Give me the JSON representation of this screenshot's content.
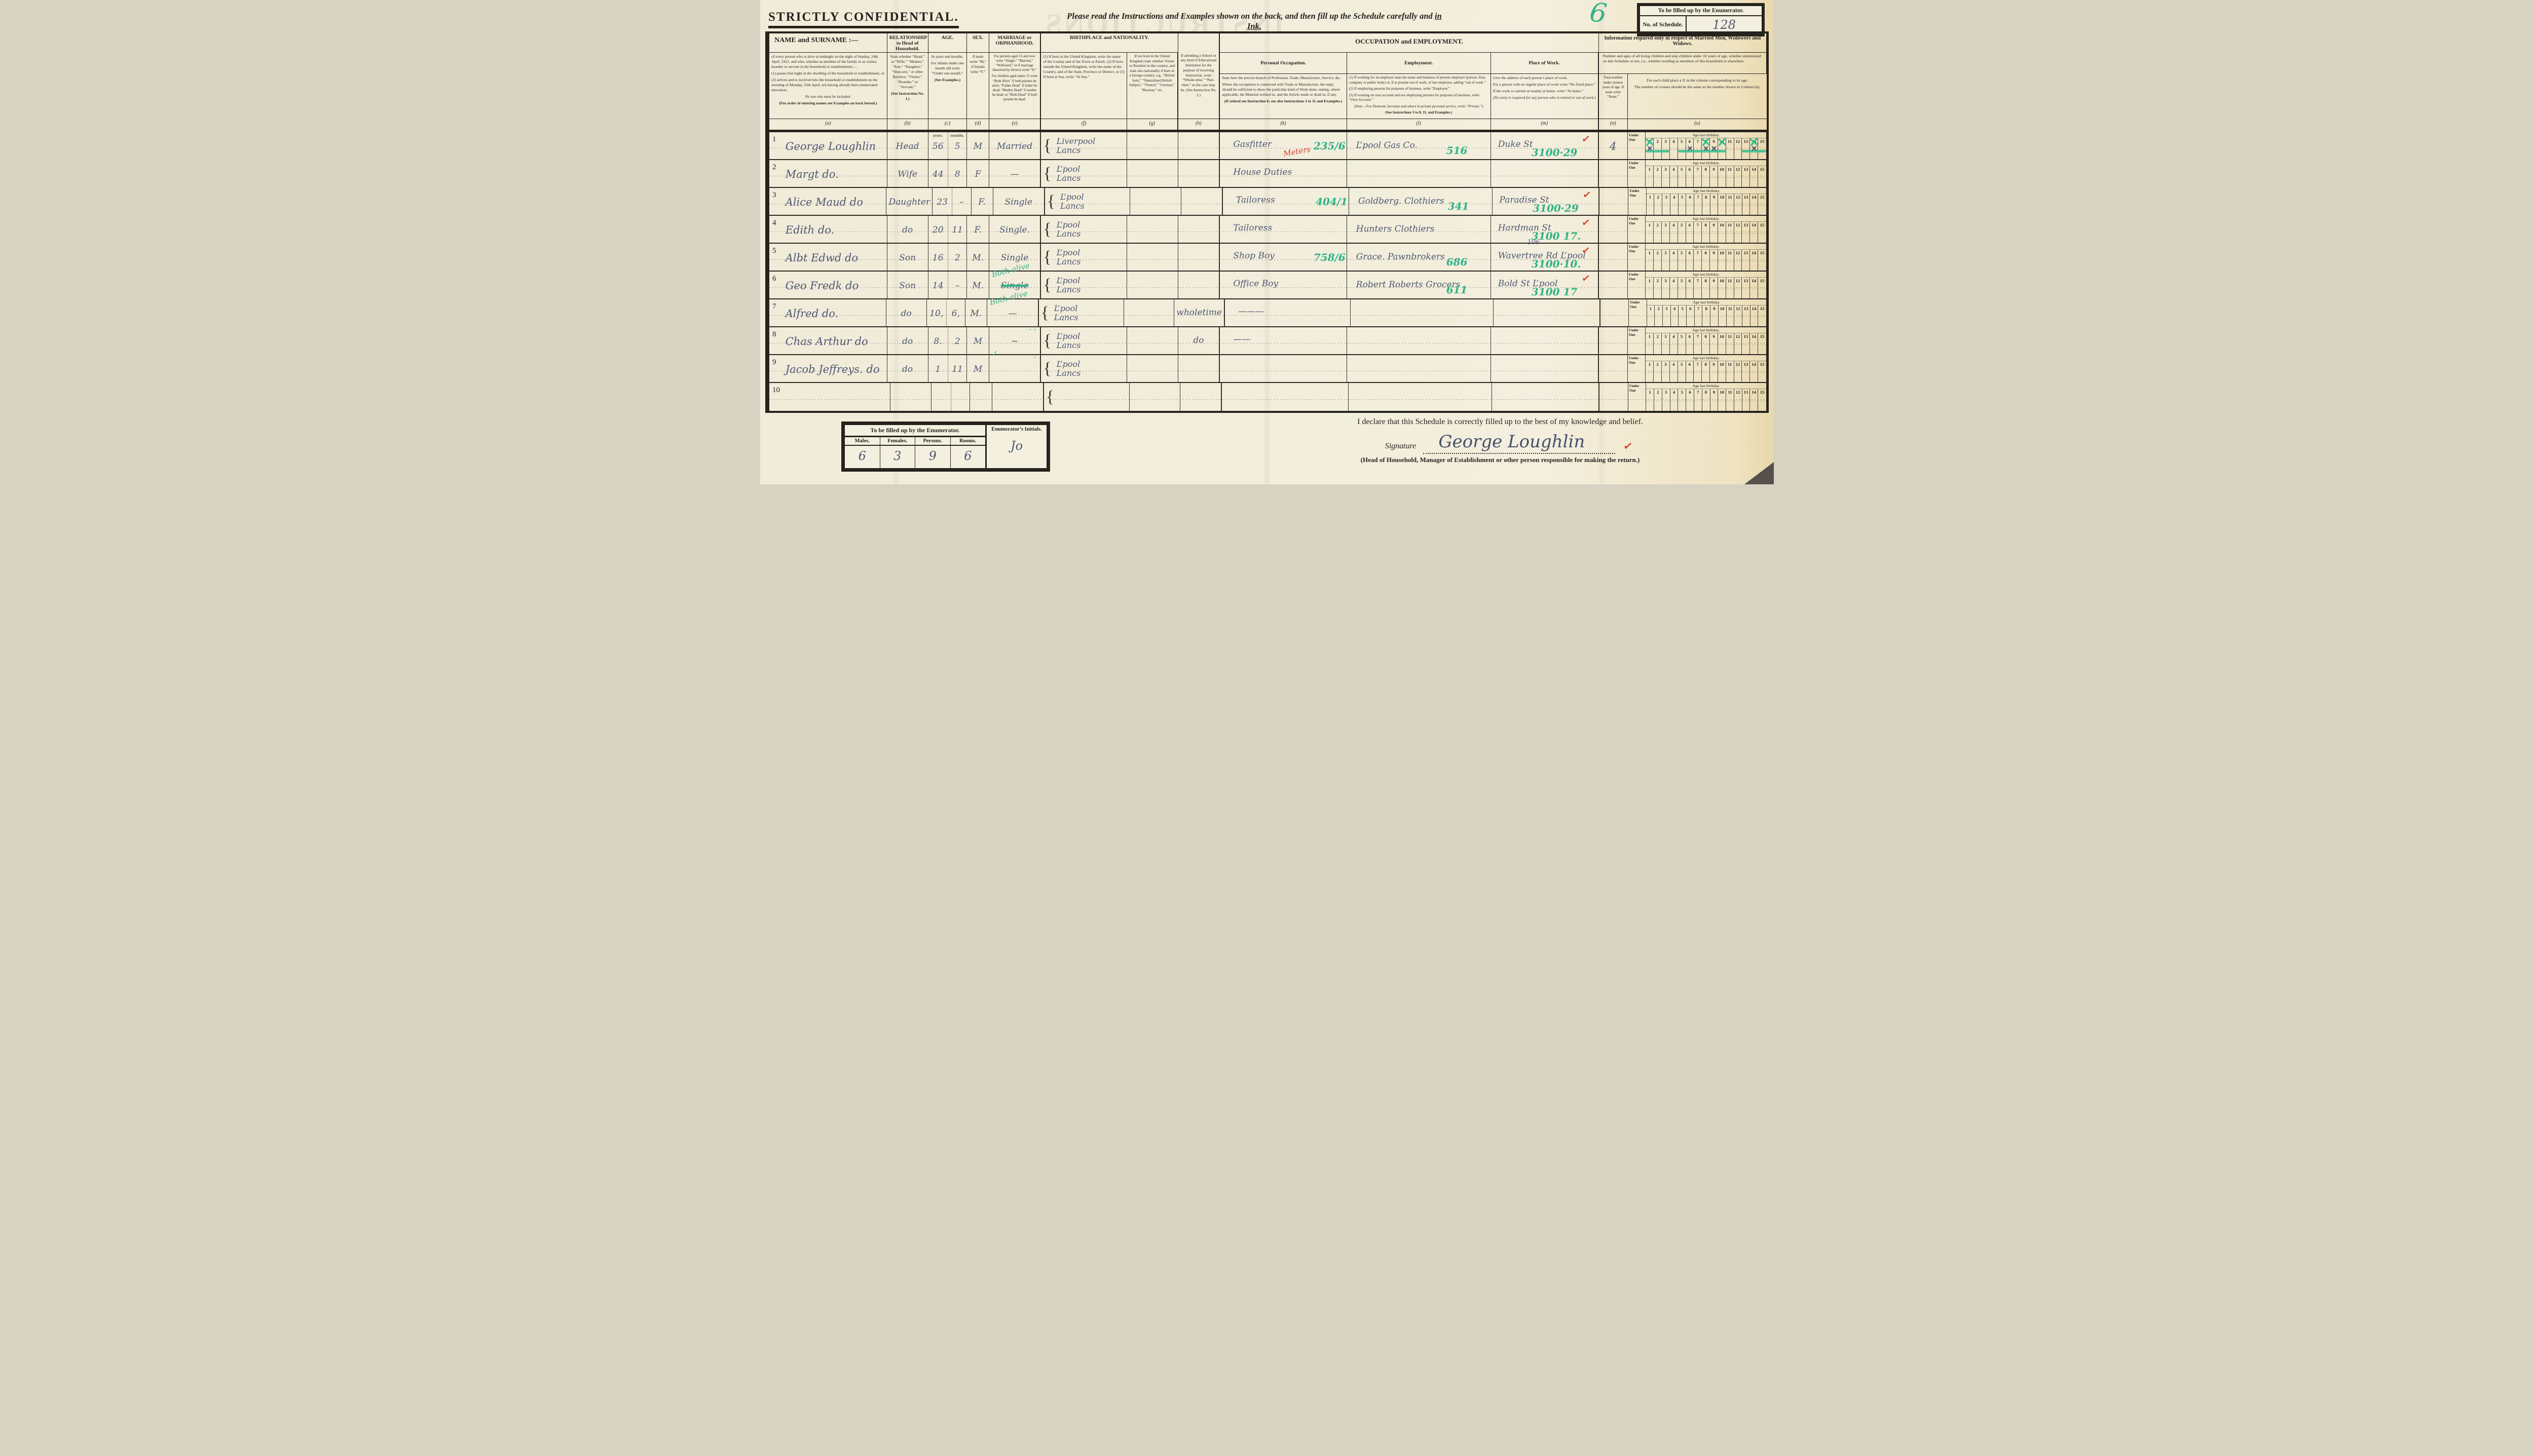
{
  "top": {
    "confidential": "STRICTLY CONFIDENTIAL.",
    "instruction_1": "Please read the Instructions and Examples shown on the back, and then fill up the Schedule carefully and ",
    "instruction_2": "in Ink.",
    "showthrough": "INSTRUCTIONS",
    "schedule_mark": "6",
    "enumerator_box_title": "To be filled up by the Enumerator.",
    "schedule_no_label": "No. of Schedule.",
    "schedule_no_value": "128"
  },
  "header": {
    "name_title": "NAME and SURNAME :—",
    "name_p1": "of every person who is alive at midnight on the night of Sunday, 24th April, 1921, and who, whether as member of the family or as visitor, boarder or servant in the household or establishment:—",
    "name_p2": "(1) passes that night in the dwelling of the household or establishment, or",
    "name_p3": "(2) arrives and is received into the household or establishment on the morning of Monday, 25th April, not having already been enumerated elsewhere.",
    "name_p4": "No one else must be included.",
    "name_p5": "(For order of entering names see Examples on back hereof.)",
    "rel_title": "RELATIONSHIP to Head of Household.",
    "rel_p1": "State whether “Head,” or “Wife,” “Mother,” “Son,” “Daughter,” “Step-son,” or other Relative, “Visitor,” “Boarder,” or “Servant.”",
    "rel_p2": "(See Instruction No. 1.)",
    "age_title": "AGE.",
    "age_p1": "In years and months.",
    "age_p2": "For infants under one month old write “Under one month.”",
    "age_p3": "(See Examples.)",
    "age_sub_years": "years.",
    "age_sub_months": "months.",
    "sex_title": "SEX.",
    "sex_p1": "If male write “M,” if female write “F.”",
    "marr_title": "MARRIAGE or ORPHANHOOD.",
    "marr_p1": "For persons aged 15 and over write “Single,” “Married,” “Widowed,” or if marriage dissolved by divorce write “D.”",
    "marr_p2": "For children aged under 15 write “Both Alive” if both parents be alive; “Father Dead” if father be dead; “Mother Dead” if mother be dead; or “Both Dead” if both parents be dead.",
    "birth_title": "BIRTHPLACE and NATIONALITY.",
    "birth_f": "(1) If born in the United Kingdom, write the name of the County and of the Town or Parish. (2) If born outside the United Kingdom, write the name of the Country, and of the State, Province or District, or (3) If born at Sea, write “At Sea.”",
    "birth_g": "If not born in the United Kingdom state whether Visitor or Resident in this country, and state also nationality if born in a foreign country, e.g., “British born,” “Naturalised British Subject,” “French,” “German,” “Russian,” etc.",
    "school_h": "If attending a School or any kind of Educational Institution for the purpose of receiving Instruction, write “Whole-time,” “Part-time,” as the case may be. (See Instruction No. 2.)",
    "occ_group_title": "OCCUPATION and EMPLOYMENT.",
    "occ_title": "Personal Occupation.",
    "occ_p1": "State here the precise branch of Profession, Trade, Manufacture, Service, &c.",
    "occ_p2": "Where the occupation is connected with Trade or Manufacture, the reply should be sufficient to show the particular kind of Work done, stating, where applicable, the Material worked in, and the Article made or dealt in, if any.",
    "occ_p3": "(If retired see Instruction 6; see also Instructions 3 to 11 and Examples.)",
    "emp_title": "Employment.",
    "emp_p1": "(1) If working for an employer state the name and business of present employer (person, firm, company or public body) or, if at present out of work, of last employer, adding “out of work.”",
    "emp_p2": "(2) If employing persons for purposes of business, write “Employer.”",
    "emp_p3": "(3) If working on own account and not employing persons for purposes of business, write “Own Account.”",
    "emp_p4": "(Note.—For Domestic Servants and others in private personal service, write “Private.”)",
    "emp_p5": "(See Instructions 3 to 8, 11, and Examples.)",
    "place_title": "Place of Work.",
    "place_p1": "Give the address of each person’s place of work.",
    "place_p2": "For a person with no regular place of work write “No fixed place.”",
    "place_p3": "If the work is carried on mainly at home, write “At home.”",
    "place_p4": "(No entry is required for any person who is retired or out of work.)",
    "info_group_title": "Information required only in respect of Married Men, Widowers and Widows.",
    "info_sub": "Number and ages of all living children and step children under 16 years of age, whether enumerated on this Schedule or not, i.e., whether residing as members of this household or elsewhere.",
    "n_p1": "Total number under sixteen years of age. If none write “None.”",
    "o_p1": "For each child place a X in the column corresponding to its age.",
    "o_p2": "The number of crosses should be the same as the number shown in Column (n).",
    "letters": [
      "(a)",
      "(b)",
      "(c)",
      "(d)",
      "(e)",
      "(f)",
      "(g)",
      "(h)",
      "(k)",
      "(l)",
      "(m)",
      "(n)",
      "(o)"
    ]
  },
  "age_grid": {
    "under_top": "Under",
    "under_bottom": "One",
    "age_header": "Age last birthday.",
    "numbers": [
      "1",
      "2",
      "3",
      "4",
      "5",
      "6",
      "7",
      "8",
      "9",
      "10",
      "11",
      "12",
      "13",
      "14",
      "15"
    ]
  },
  "rows": [
    {
      "num": "1",
      "name": "George Loughlin",
      "relationship": "Head",
      "age_years": "56",
      "age_months": "5",
      "ym_years": "years.",
      "ym_months": "months.",
      "sex": "M",
      "marriage": "Married",
      "marriage_struck": false,
      "marriage_green": "",
      "ditto": "",
      "birth_top": "Liverpool",
      "birth_bottom": "Lancs",
      "school": "",
      "occupation": "Gasfitter",
      "occupation_red": "Meters",
      "occupation_code": "235/6",
      "employer": "L’pool Gas Co.",
      "employer_code": "516",
      "place_above": "",
      "place": "Duke St",
      "place_code": "3100·29",
      "place_check": true,
      "children_total": "4",
      "crosses_green": [
        1,
        8,
        10,
        14
      ],
      "crosses_struck": [
        1,
        6,
        8,
        9,
        14
      ],
      "strike_bars": [
        [
          1,
          3
        ],
        [
          5,
          10
        ],
        [
          13,
          15
        ]
      ]
    },
    {
      "num": "2",
      "name": "Margt do.",
      "relationship": "Wife",
      "age_years": "44",
      "age_months": "8",
      "ym_years": "",
      "ym_months": "",
      "sex": "F",
      "marriage": "—",
      "marriage_struck": false,
      "marriage_green": "",
      "ditto": "",
      "birth_top": "L’pool",
      "birth_bottom": "Lancs",
      "school": "",
      "occupation": "House Duties",
      "occupation_red": "",
      "occupation_code": "",
      "employer": "",
      "employer_code": "",
      "place_above": "",
      "place": "",
      "place_code": "",
      "place_check": false,
      "children_total": "",
      "crosses_green": [],
      "crosses_struck": [],
      "strike_bars": []
    },
    {
      "num": "3",
      "name": "Alice Maud do",
      "relationship": "Daughter",
      "age_years": "23",
      "age_months": "–",
      "ym_years": "",
      "ym_months": "",
      "sex": "F.",
      "marriage": "Single",
      "marriage_struck": false,
      "marriage_green": "",
      "ditto": "",
      "birth_top": "L’pool",
      "birth_bottom": "Lancs",
      "school": "",
      "occupation": "Tailoress",
      "occupation_red": "",
      "occupation_code": "404/1",
      "employer": "Goldberg. Clothiers",
      "employer_code": "341",
      "place_above": "",
      "place": "Paradise St",
      "place_code": "3100·29",
      "place_check": true,
      "children_total": "",
      "crosses_green": [],
      "crosses_struck": [],
      "strike_bars": []
    },
    {
      "num": "4",
      "name": "Edith do.",
      "relationship": "do",
      "age_years": "20",
      "age_months": "11",
      "ym_years": "",
      "ym_months": "",
      "sex": "F.",
      "marriage": "Single.",
      "marriage_struck": false,
      "marriage_green": "",
      "ditto": "",
      "birth_top": "L’pool",
      "birth_bottom": "Lancs",
      "school": "",
      "occupation": "Tailoress",
      "occupation_red": "",
      "occupation_code": "",
      "employer": "Hunters Clothiers",
      "employer_code": "",
      "place_above": "",
      "place": "Hardman St",
      "place_code": "3100 17.",
      "place_check": true,
      "children_total": "",
      "crosses_green": [],
      "crosses_struck": [],
      "strike_bars": []
    },
    {
      "num": "5",
      "name": "Albt Edwd do",
      "relationship": "Son",
      "age_years": "16",
      "age_months": "2",
      "ym_years": "",
      "ym_months": "",
      "sex": "M.",
      "marriage": "Single",
      "marriage_struck": false,
      "marriage_green": "",
      "ditto": "",
      "birth_top": "L’pool",
      "birth_bottom": "Lancs",
      "school": "",
      "occupation": "Shop Boy",
      "occupation_red": "",
      "occupation_code": "758/6",
      "employer": "Grace. Pawnbrokers",
      "employer_code": "686",
      "place_above": "106",
      "place": "Wavertree Rd L’pool",
      "place_code": "3100·10.",
      "place_check": true,
      "children_total": "",
      "crosses_green": [],
      "crosses_struck": [],
      "strike_bars": []
    },
    {
      "num": "6",
      "name": "Geo Fredk do",
      "relationship": "Son",
      "age_years": "14",
      "age_months": "–",
      "ym_years": "",
      "ym_months": "",
      "sex": "M.",
      "marriage": "Single",
      "marriage_struck": true,
      "marriage_green": "Both alive",
      "ditto": "",
      "birth_top": "L’pool",
      "birth_bottom": "Lancs",
      "school": "",
      "occupation": "Office Boy",
      "occupation_red": "",
      "occupation_code": "",
      "employer": "Robert Roberts Grocers",
      "employer_code": "611",
      "place_above": "",
      "place": "Bold St L’pool",
      "place_code": "3100 17",
      "place_check": true,
      "children_total": "",
      "crosses_green": [],
      "crosses_struck": [],
      "strike_bars": []
    },
    {
      "num": "7",
      "name": "Alfred do.",
      "relationship": "do",
      "age_years": "10,",
      "age_months": "6,",
      "ym_years": "",
      "ym_months": "",
      "sex": "M.",
      "marriage": "—",
      "marriage_struck": false,
      "marriage_green": "Both alive",
      "ditto": "",
      "birth_top": "L’pool",
      "birth_bottom": "Lancs",
      "school": "wholetime",
      "occupation": "———",
      "occupation_red": "",
      "occupation_code": "",
      "employer": "",
      "employer_code": "",
      "place_above": "",
      "place": "",
      "place_code": "",
      "place_check": false,
      "children_total": "",
      "crosses_green": [],
      "crosses_struck": [],
      "strike_bars": []
    },
    {
      "num": "8",
      "name": "Chas Arthur do",
      "relationship": "do",
      "age_years": "8.",
      "age_months": "2",
      "ym_years": "",
      "ym_months": "",
      "sex": "M",
      "marriage": "~",
      "marriage_struck": false,
      "marriage_green": "",
      "ditto": "″  ″",
      "birth_top": "L’pool",
      "birth_bottom": "Lancs",
      "school": "do",
      "occupation": "——",
      "occupation_red": "",
      "occupation_code": "",
      "employer": "",
      "employer_code": "",
      "place_above": "",
      "place": "",
      "place_code": "",
      "place_check": false,
      "children_total": "",
      "crosses_green": [],
      "crosses_struck": [],
      "strike_bars": []
    },
    {
      "num": "9",
      "name": "Jacob Jeffreys. do",
      "relationship": "do",
      "age_years": "1",
      "age_months": "11",
      "ym_years": "",
      "ym_months": "",
      "sex": "M",
      "marriage": "",
      "marriage_struck": false,
      "marriage_green": "✓",
      "ditto": "″",
      "birth_top": "L’pool",
      "birth_bottom": "Lancs",
      "school": "",
      "occupation": "",
      "occupation_red": "",
      "occupation_code": "",
      "employer": "",
      "employer_code": "",
      "place_above": "",
      "place": "",
      "place_code": "",
      "place_check": false,
      "children_total": "",
      "crosses_green": [],
      "crosses_struck": [],
      "strike_bars": []
    },
    {
      "num": "10",
      "name": "",
      "relationship": "",
      "age_years": "",
      "age_months": "",
      "ym_years": "",
      "ym_months": "",
      "sex": "",
      "marriage": "",
      "marriage_struck": false,
      "marriage_green": "",
      "ditto": "",
      "birth_top": "",
      "birth_bottom": "",
      "school": "",
      "occupation": "",
      "occupation_red": "",
      "occupation_code": "",
      "employer": "",
      "employer_code": "",
      "place_above": "",
      "place": "",
      "place_code": "",
      "place_check": false,
      "children_total": "",
      "crosses_green": [],
      "crosses_struck": [],
      "strike_bars": []
    }
  ],
  "footer": {
    "box_title": "To be filled up by the Enumerator.",
    "males_label": "Males.",
    "males_value": "6",
    "females_label": "Females.",
    "females_value": "3",
    "persons_label": "Persons.",
    "persons_value": "9",
    "rooms_label": "Rooms.",
    "rooms_value": "6",
    "initials_label": "Enumerator’s Initials.",
    "initials_value": "Jo",
    "declaration": "I declare that this Schedule is correctly filled up to the best of my knowledge and belief.",
    "signature_label": "Signature",
    "signature_value": "George Loughlin",
    "signature_check": "✓",
    "signature_caption": "(Head of Household, Manager of Establishment or other person responsible for making the return.)"
  },
  "colors": {
    "paper": "#f2edda",
    "print_ink": "#26231e",
    "handwriting_ink": "#4d5874",
    "enumerator_teal": "#2fb487",
    "annotation_red": "#d9432e",
    "mark_green": "#35bd8d"
  }
}
